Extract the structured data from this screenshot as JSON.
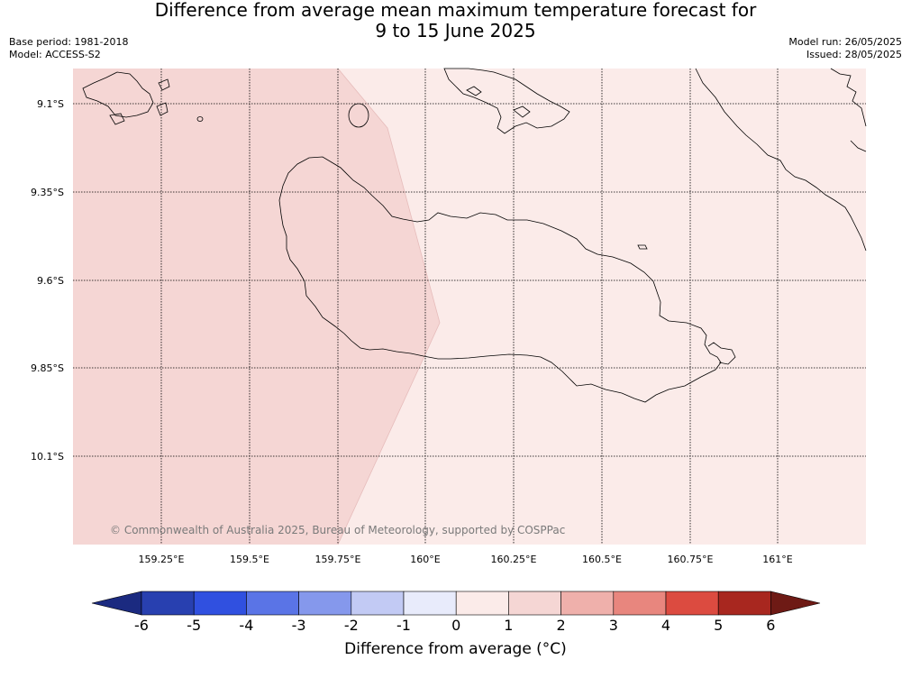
{
  "title": {
    "line1": "Difference from average mean maximum temperature forecast for",
    "line2": "9 to 15 June 2025"
  },
  "meta_left": {
    "base_period": "Base period: 1981-2018",
    "model": "Model: ACCESS-S2"
  },
  "meta_right": {
    "model_run": "Model run: 26/05/2025",
    "issued": "Issued: 28/05/2025"
  },
  "copyright": "© Commonwealth of Australia 2025, Bureau of Meteorology, supported by COSPPac",
  "map": {
    "lat_ticks": [
      "9.1°S",
      "9.35°S",
      "9.6°S",
      "9.85°S",
      "10.1°S"
    ],
    "lon_ticks": [
      "159.25°E",
      "159.5°E",
      "159.75°E",
      "160°E",
      "160.25°E",
      "160.5°E",
      "160.75°E",
      "161°E"
    ],
    "regions": [
      {
        "label": "1 to 2 °C",
        "color": "#f5d6d4"
      },
      {
        "label": "0 to 1 °C",
        "color": "#fbebe9"
      }
    ]
  },
  "colorbar": {
    "label": "Difference from average (°C)",
    "ticks": [
      "-6",
      "-5",
      "-4",
      "-3",
      "-2",
      "-1",
      "0",
      "1",
      "2",
      "3",
      "4",
      "5",
      "6"
    ],
    "colors": [
      "#1b2a80",
      "#2840b0",
      "#3050e0",
      "#5a74e6",
      "#8598ec",
      "#c2caf4",
      "#e8ebfb",
      "#fbebe9",
      "#f5d6d4",
      "#efb0ab",
      "#e8867e",
      "#dc4b40",
      "#a8271f",
      "#6e1a15"
    ]
  }
}
